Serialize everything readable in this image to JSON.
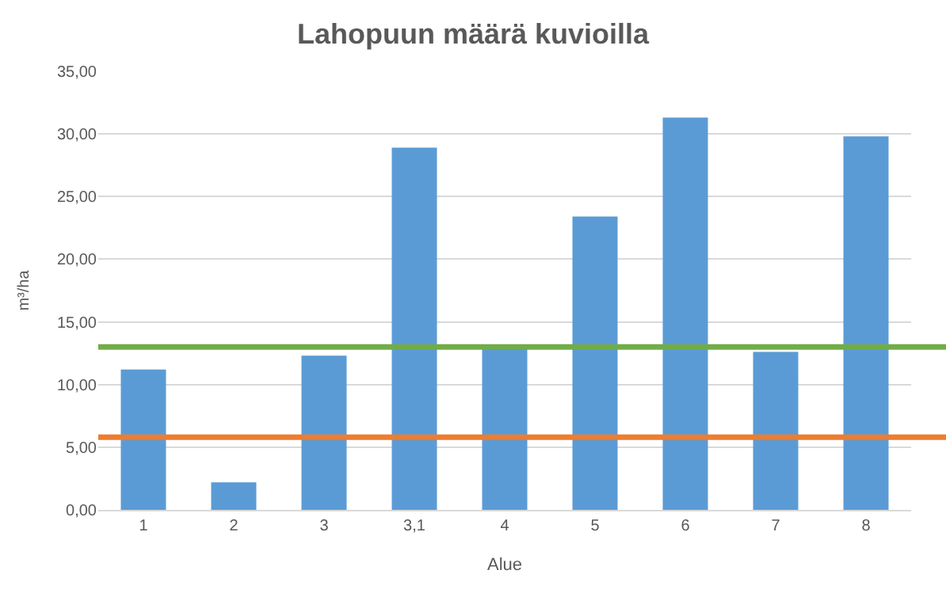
{
  "chart_data": {
    "type": "bar",
    "title": "Lahopuun määrä kuvioilla",
    "xlabel": "Alue",
    "ylabel": "m³/ha",
    "categories": [
      "1",
      "2",
      "3",
      "3,1",
      "4",
      "5",
      "6",
      "7",
      "8"
    ],
    "values": [
      11.2,
      2.2,
      12.3,
      28.9,
      13.0,
      23.4,
      31.3,
      12.6,
      29.8
    ],
    "color": "#5b9bd5",
    "ylim": [
      0,
      35
    ],
    "yticks": [
      {
        "value": 0,
        "label": "0,00"
      },
      {
        "value": 5,
        "label": "5,00"
      },
      {
        "value": 10,
        "label": "10,00"
      },
      {
        "value": 15,
        "label": "15,00"
      },
      {
        "value": 20,
        "label": "20,00"
      },
      {
        "value": 25,
        "label": "25,00"
      },
      {
        "value": 30,
        "label": "30,00"
      },
      {
        "value": 35,
        "label": "35,00"
      }
    ],
    "ref_lines": [
      {
        "axis": "y",
        "value": 13.0,
        "color": "#70ad47"
      },
      {
        "axis": "y",
        "value": 5.8,
        "color": "#ed7d31"
      }
    ],
    "grid": "y"
  }
}
